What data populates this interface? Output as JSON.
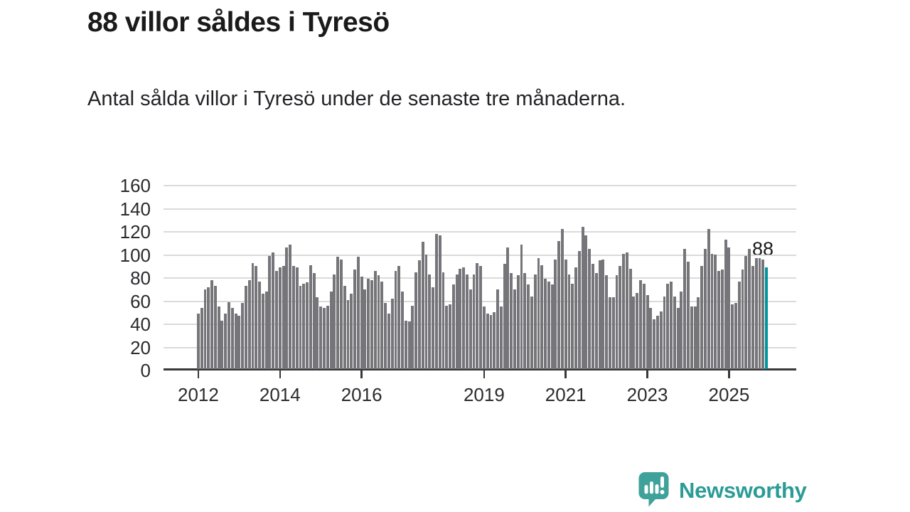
{
  "header": {
    "title": "88 villor såldes i Tyresö",
    "subtitle": "Antal sålda villor i Tyresö under de senaste tre månaderna."
  },
  "chart_data": {
    "type": "bar",
    "title": "88 villor såldes i Tyresö",
    "subtitle": "Antal sålda villor i Tyresö under de senaste tre månaderna.",
    "xlabel": "",
    "ylabel": "",
    "ylim": [
      0,
      160
    ],
    "yticks": [
      0,
      20,
      40,
      60,
      80,
      100,
      120,
      140,
      160
    ],
    "grid": true,
    "x_frequency": "monthly",
    "x_start": "2012-01",
    "x_end": "2025-12",
    "values": [
      48,
      53,
      69,
      71,
      77,
      72,
      54,
      42,
      48,
      58,
      53,
      48,
      46,
      57,
      72,
      77,
      92,
      89,
      76,
      65,
      67,
      98,
      101,
      85,
      88,
      89,
      105,
      108,
      89,
      88,
      72,
      74,
      75,
      90,
      83,
      62,
      54,
      53,
      55,
      67,
      82,
      97,
      95,
      72,
      60,
      65,
      86,
      97,
      80,
      69,
      78,
      77,
      85,
      81,
      76,
      57,
      48,
      61,
      85,
      89,
      67,
      42,
      41,
      55,
      84,
      94,
      110,
      99,
      82,
      71,
      117,
      116,
      84,
      55,
      56,
      73,
      82,
      87,
      88,
      82,
      69,
      82,
      92,
      89,
      54,
      48,
      47,
      49,
      69,
      54,
      91,
      105,
      83,
      69,
      81,
      108,
      83,
      73,
      63,
      82,
      96,
      90,
      78,
      76,
      73,
      95,
      111,
      121,
      95,
      82,
      74,
      88,
      102,
      123,
      116,
      104,
      91,
      83,
      94,
      95,
      81,
      62,
      62,
      81,
      89,
      100,
      101,
      87,
      63,
      66,
      77,
      74,
      64,
      53,
      43,
      46,
      50,
      63,
      74,
      76,
      63,
      53,
      67,
      104,
      93,
      54,
      54,
      62,
      89,
      104,
      121,
      100,
      99,
      85,
      86,
      112,
      105,
      56,
      57,
      76,
      86,
      98,
      104,
      89,
      96,
      96,
      95,
      88
    ],
    "highlight_index": 167,
    "bar_color": "#75757a",
    "highlight_color": "#00959c",
    "annotation": {
      "text": "88",
      "value": 88
    },
    "xticks": [
      {
        "label": "2012",
        "month_index": 0
      },
      {
        "label": "2014",
        "month_index": 24
      },
      {
        "label": "2016",
        "month_index": 48
      },
      {
        "label": "2019",
        "month_index": 84
      },
      {
        "label": "2021",
        "month_index": 108
      },
      {
        "label": "2023",
        "month_index": 132
      },
      {
        "label": "2025",
        "month_index": 156
      }
    ],
    "legend": null
  },
  "branding": {
    "name": "Newsworthy",
    "icon": "bar-chart-speech-bubble-icon",
    "icon_color": "#3fa29a",
    "text_color": "#2b9c95"
  }
}
